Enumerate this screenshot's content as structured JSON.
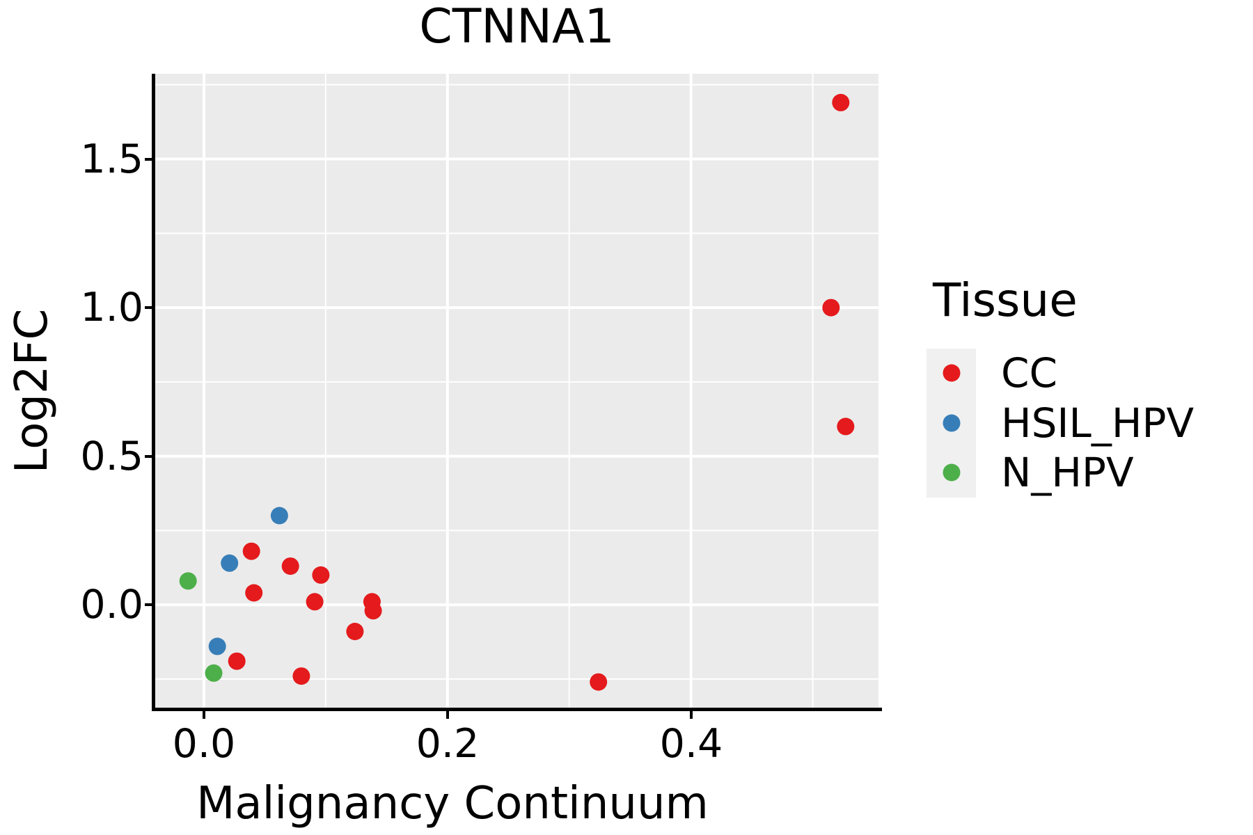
{
  "chart_data": {
    "type": "scatter",
    "title": "CTNNA1",
    "xlabel": "Malignancy Continuum",
    "ylabel": "Log2FC",
    "legend_title": "Tissue",
    "legend_position": "right",
    "grid": true,
    "panel_bg": "#EBEBEB",
    "grid_color": "#FFFFFF",
    "legend_key_bg": "#F0F0F0",
    "xlim": [
      -0.04,
      0.554
    ],
    "ylim": [
      -0.351,
      1.787
    ],
    "x_ticks": [
      0.0,
      0.2,
      0.4
    ],
    "x_tick_labels": [
      "0.0",
      "0.2",
      "0.4"
    ],
    "y_ticks": [
      0.0,
      0.5,
      1.0,
      1.5
    ],
    "y_tick_labels": [
      "0.0",
      "0.5",
      "1.0",
      "1.5"
    ],
    "series": [
      {
        "name": "CC",
        "color": "#E41A1C",
        "points": [
          [
            0.523,
            1.69
          ],
          [
            0.515,
            1.0
          ],
          [
            0.527,
            0.6
          ],
          [
            0.039,
            0.18
          ],
          [
            0.071,
            0.13
          ],
          [
            0.096,
            0.1
          ],
          [
            0.041,
            0.04
          ],
          [
            0.091,
            0.01
          ],
          [
            0.138,
            0.01
          ],
          [
            0.139,
            -0.02
          ],
          [
            0.124,
            -0.09
          ],
          [
            0.027,
            -0.19
          ],
          [
            0.08,
            -0.24
          ],
          [
            0.324,
            -0.26
          ]
        ]
      },
      {
        "name": "HSIL_HPV",
        "color": "#377EB8",
        "points": [
          [
            0.062,
            0.3
          ],
          [
            0.021,
            0.14
          ],
          [
            0.011,
            -0.14
          ]
        ]
      },
      {
        "name": "N_HPV",
        "color": "#4DAF4A",
        "points": [
          [
            -0.013,
            0.08
          ],
          [
            0.008,
            -0.23
          ]
        ]
      }
    ]
  }
}
